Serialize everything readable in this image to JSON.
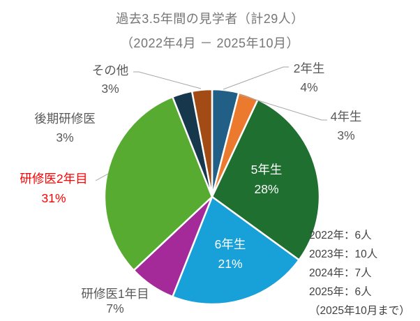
{
  "title": {
    "line1": "過去3.5年間の見学者（計29人）",
    "line2": "（2022年4月 － 2025年10月）"
  },
  "chart_data": {
    "type": "pie",
    "title": "過去3.5年間の見学者（計29人）（2022年4月 － 2025年10月）",
    "total_people": 29,
    "unit": "%",
    "start_angle_deg": 0,
    "clockwise": true,
    "legend": "none",
    "slices": [
      {
        "label": "2年生",
        "percent": 4,
        "color": "#215F87",
        "label_placement": "outside"
      },
      {
        "label": "4年生",
        "percent": 3,
        "color": "#EC7A2E",
        "label_placement": "outside"
      },
      {
        "label": "5年生",
        "percent": 28,
        "color": "#1E6F30",
        "label_placement": "inside"
      },
      {
        "label": "6年生",
        "percent": 21,
        "color": "#18A0D8",
        "label_placement": "inside"
      },
      {
        "label": "研修医1年目",
        "percent": 7,
        "color": "#A52A99",
        "label_placement": "outside"
      },
      {
        "label": "研修医2年目",
        "percent": 31,
        "color": "#57AB30",
        "label_placement": "outside",
        "label_color": "#FF0000"
      },
      {
        "label": "後期研修医",
        "percent": 3,
        "color": "#16374C",
        "label_placement": "outside"
      },
      {
        "label": "その他",
        "percent": 3,
        "color": "#A34B15",
        "label_placement": "outside"
      }
    ]
  },
  "annotations": {
    "yearly": [
      "2022年：6人",
      "2023年：10人",
      "2024年：7人",
      "2025年：6人"
    ],
    "note": "（2025年10月まで）"
  },
  "colors": {
    "title_text": "#767676",
    "outside_label": "#595959",
    "inside_label": "#FFFFFF",
    "emphasis_label": "#FF0000",
    "annotation_text": "#404040",
    "leader_line": "#A6A6A6",
    "background": "#FFFFFF"
  }
}
